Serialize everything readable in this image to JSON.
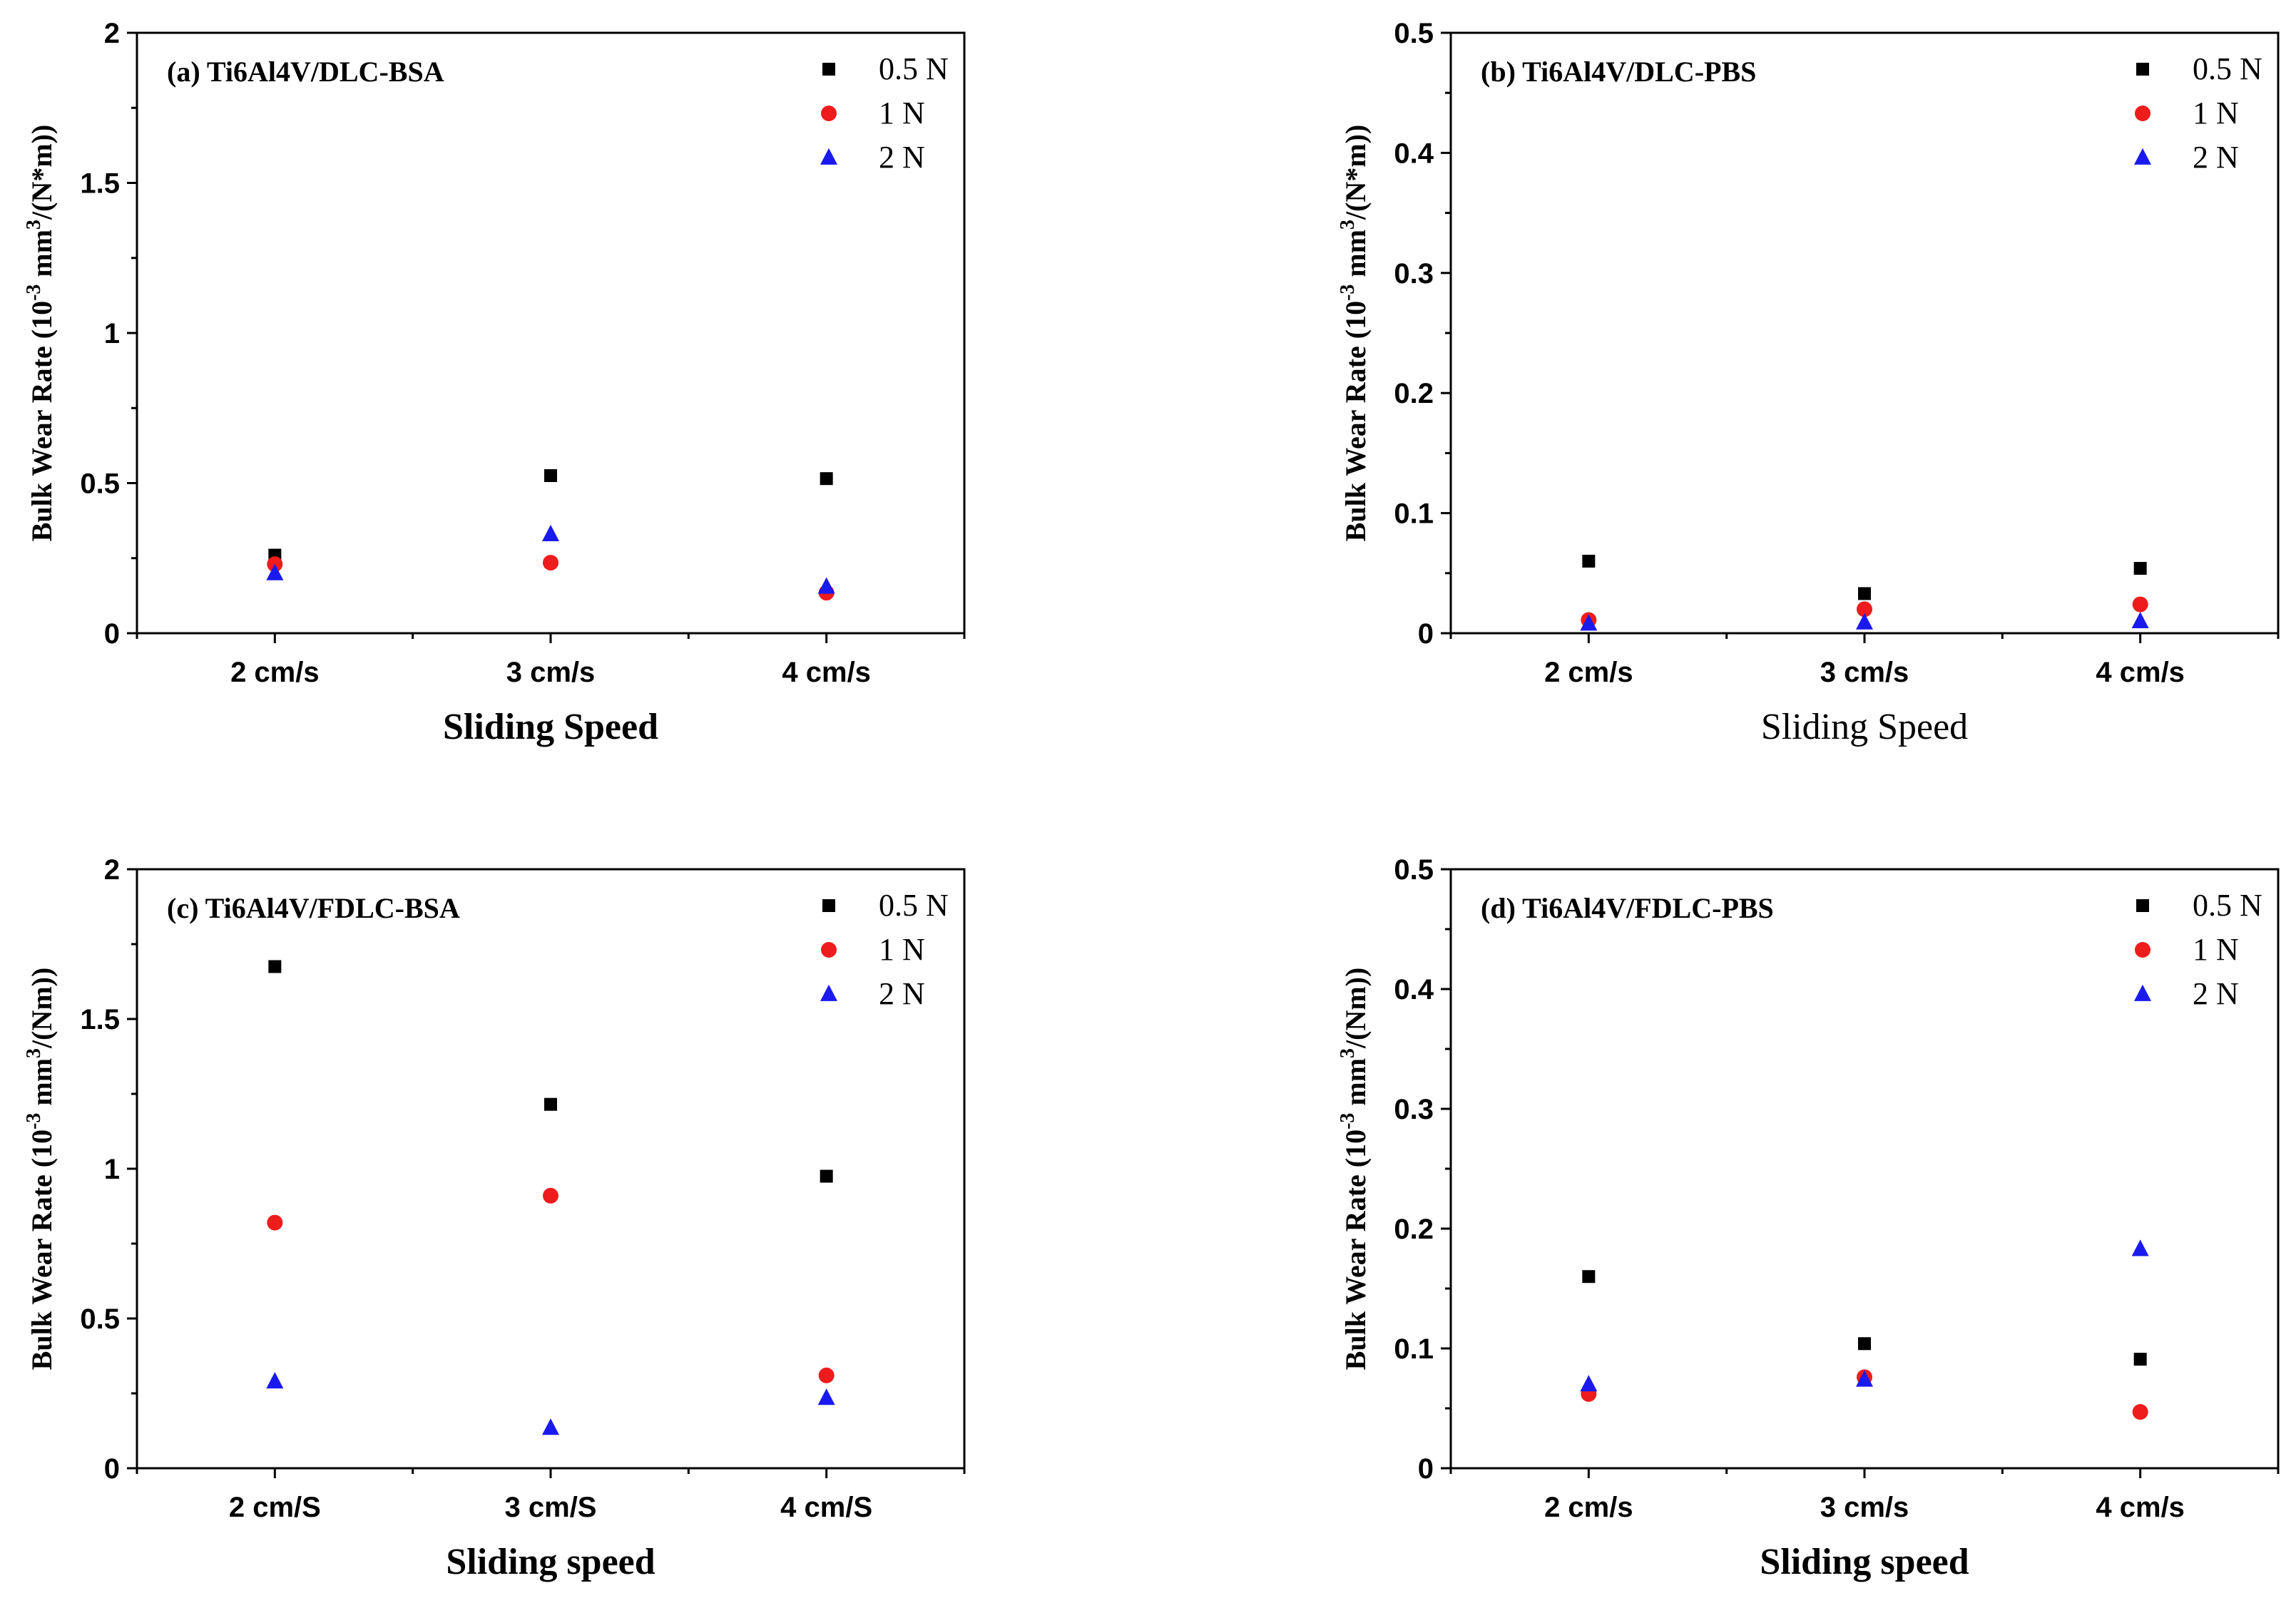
{
  "chart_data": [
    {
      "panel": "a",
      "type": "scatter",
      "title": "(a) Ti6Al4V/DLC-BSA",
      "xlabel": "Sliding Speed",
      "xlabel_bold": true,
      "ylabel_prefix": "Bulk Wear Rate (10",
      "ylabel_exp1": "-3",
      "ylabel_mid": " mm",
      "ylabel_exp2": "3",
      "ylabel_suffix": "/(N*m))",
      "categories": [
        "2 cm/s",
        "3 cm/s",
        "4 cm/s"
      ],
      "ylim": [
        0,
        2
      ],
      "yticks": [
        0,
        0.5,
        1,
        1.5,
        2
      ],
      "ytick_labels": [
        "0",
        "0.5",
        "1",
        "1.5",
        "2"
      ],
      "legend_location": "top-right",
      "series": [
        {
          "name": "0.5 N",
          "marker": "square",
          "color": "#000000",
          "values": [
            0.26,
            0.525,
            0.515
          ]
        },
        {
          "name": "1 N",
          "marker": "circle",
          "color": "#ee1c1c",
          "values": [
            0.23,
            0.235,
            0.135
          ]
        },
        {
          "name": "2 N",
          "marker": "triangle",
          "color": "#1a1aee",
          "values": [
            0.2,
            0.33,
            0.155
          ]
        }
      ]
    },
    {
      "panel": "b",
      "type": "scatter",
      "title": "(b) Ti6Al4V/DLC-PBS",
      "xlabel": "Sliding Speed",
      "xlabel_bold": false,
      "ylabel_prefix": "Bulk Wear Rate (10",
      "ylabel_exp1": "-3",
      "ylabel_mid": " mm",
      "ylabel_exp2": "3",
      "ylabel_suffix": "/(N*m))",
      "categories": [
        "2 cm/s",
        "3 cm/s",
        "4 cm/s"
      ],
      "ylim": [
        0,
        0.5
      ],
      "yticks": [
        0,
        0.1,
        0.2,
        0.3,
        0.4,
        0.5
      ],
      "ytick_labels": [
        "0",
        "0.1",
        "0.2",
        "0.3",
        "0.4",
        "0.5"
      ],
      "legend_location": "top-right",
      "series": [
        {
          "name": "0.5 N",
          "marker": "square",
          "color": "#000000",
          "values": [
            0.06,
            0.033,
            0.054
          ]
        },
        {
          "name": "1 N",
          "marker": "circle",
          "color": "#ee1c1c",
          "values": [
            0.011,
            0.02,
            0.024
          ]
        },
        {
          "name": "2 N",
          "marker": "triangle",
          "color": "#1a1aee",
          "values": [
            0.008,
            0.009,
            0.01
          ]
        }
      ]
    },
    {
      "panel": "c",
      "type": "scatter",
      "title": "(c) Ti6Al4V/FDLC-BSA",
      "xlabel": "Sliding speed",
      "xlabel_bold": true,
      "ylabel_prefix": "Bulk Wear Rate (10",
      "ylabel_exp1": "-3",
      "ylabel_mid": " mm",
      "ylabel_exp2": "3",
      "ylabel_suffix": "/(Nm))",
      "categories": [
        "2 cm/S",
        "3 cm/S",
        "4 cm/S"
      ],
      "ylim": [
        0,
        2
      ],
      "yticks": [
        0,
        0.5,
        1,
        1.5,
        2
      ],
      "ytick_labels": [
        "0",
        "0.5",
        "1",
        "1.5",
        "2"
      ],
      "legend_location": "top-right",
      "series": [
        {
          "name": "0.5 N",
          "marker": "square",
          "color": "#000000",
          "values": [
            1.675,
            1.215,
            0.975
          ]
        },
        {
          "name": "1 N",
          "marker": "circle",
          "color": "#ee1c1c",
          "values": [
            0.82,
            0.91,
            0.31
          ]
        },
        {
          "name": "2 N",
          "marker": "triangle",
          "color": "#1a1aee",
          "values": [
            0.29,
            0.135,
            0.235
          ]
        }
      ]
    },
    {
      "panel": "d",
      "type": "scatter",
      "title": "(d) Ti6Al4V/FDLC-PBS",
      "xlabel": "Sliding speed",
      "xlabel_bold": true,
      "ylabel_prefix": "Bulk Wear Rate (10",
      "ylabel_exp1": "-3",
      "ylabel_mid": " mm",
      "ylabel_exp2": "3",
      "ylabel_suffix": "/(Nm))",
      "categories": [
        "2 cm/s",
        "3 cm/s",
        "4 cm/s"
      ],
      "ylim": [
        0,
        0.5
      ],
      "yticks": [
        0,
        0.1,
        0.2,
        0.3,
        0.4,
        0.5
      ],
      "ytick_labels": [
        "0",
        "0.1",
        "0.2",
        "0.3",
        "0.4",
        "0.5"
      ],
      "legend_location": "top-right",
      "series": [
        {
          "name": "0.5 N",
          "marker": "square",
          "color": "#000000",
          "values": [
            0.16,
            0.104,
            0.091
          ]
        },
        {
          "name": "1 N",
          "marker": "circle",
          "color": "#ee1c1c",
          "values": [
            0.062,
            0.076,
            0.047
          ]
        },
        {
          "name": "2 N",
          "marker": "triangle",
          "color": "#1a1aee",
          "values": [
            0.07,
            0.074,
            0.183
          ]
        }
      ]
    }
  ]
}
